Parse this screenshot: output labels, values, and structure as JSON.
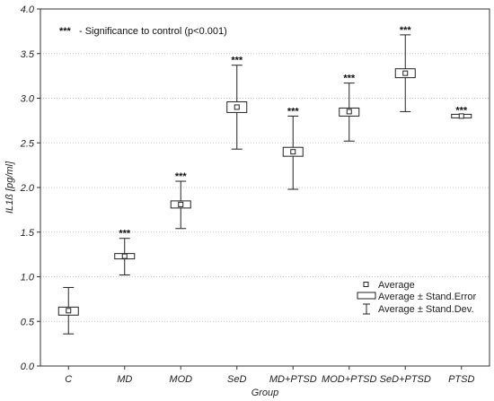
{
  "chart_data": {
    "type": "box",
    "xlabel": "Group",
    "ylabel": "IL1ß [pg/ml]",
    "ylim": [
      0.0,
      4.0
    ],
    "yticks": [
      "0.0",
      "0.5",
      "1.0",
      "1.5",
      "2.0",
      "2.5",
      "3.0",
      "3.5",
      "4.0"
    ],
    "ytick_values": [
      0,
      0.5,
      1,
      1.5,
      2,
      2.5,
      3,
      3.5,
      4
    ],
    "categories": [
      "C",
      "MD",
      "MOD",
      "SeD",
      "MD+PTSD",
      "MOD+PTSD",
      "SeD+PTSD",
      "PTSD"
    ],
    "mean": [
      0.62,
      1.23,
      1.81,
      2.9,
      2.4,
      2.85,
      3.28,
      2.8
    ],
    "se_low": [
      0.57,
      1.2,
      1.77,
      2.84,
      2.35,
      2.8,
      3.23,
      2.78
    ],
    "se_high": [
      0.66,
      1.26,
      1.85,
      2.96,
      2.45,
      2.89,
      3.33,
      2.82
    ],
    "sd_low": [
      0.36,
      1.02,
      1.54,
      2.43,
      1.98,
      2.52,
      2.85,
      2.79
    ],
    "sd_high": [
      0.88,
      1.43,
      2.07,
      3.37,
      2.8,
      3.17,
      3.71,
      2.81
    ],
    "significance": [
      "",
      "***",
      "***",
      "***",
      "***",
      "***",
      "***",
      "***"
    ],
    "annotation": {
      "symbol": "***",
      "text": "- Significance to control (p<0.001)"
    },
    "legend": {
      "position": "bottom-right",
      "items": [
        "Average",
        "Average ± Stand.Error",
        "Average ± Stand.Dev."
      ]
    }
  }
}
